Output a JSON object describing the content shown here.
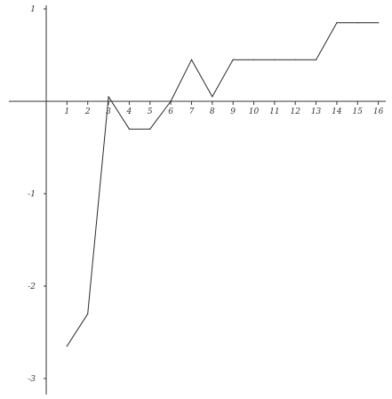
{
  "chart_data": {
    "type": "line",
    "title": "",
    "xlabel": "",
    "ylabel": "",
    "x": [
      1,
      2,
      3,
      4,
      5,
      6,
      7,
      8,
      9,
      10,
      11,
      12,
      13,
      14,
      15,
      16
    ],
    "series": [
      {
        "values": [
          -2.65,
          -2.3,
          0.05,
          -0.3,
          -0.3,
          0.0,
          0.45,
          0.05,
          0.45,
          0.45,
          0.45,
          0.45,
          0.45,
          0.85,
          0.85,
          0.85
        ]
      }
    ],
    "xlim": [
      0,
      16
    ],
    "ylim": [
      -3,
      1
    ],
    "x_ticks": [
      "1",
      "2",
      "3",
      "4",
      "5",
      "6",
      "7",
      "8",
      "9",
      "10",
      "11",
      "12",
      "13",
      "14",
      "15",
      "16"
    ],
    "y_ticks": [
      "1",
      "-1",
      "-2",
      "-3"
    ],
    "y_tick_values": [
      1,
      -1,
      -2,
      -3
    ],
    "grid": false,
    "legend": "none",
    "color": "#2a2a2a"
  }
}
